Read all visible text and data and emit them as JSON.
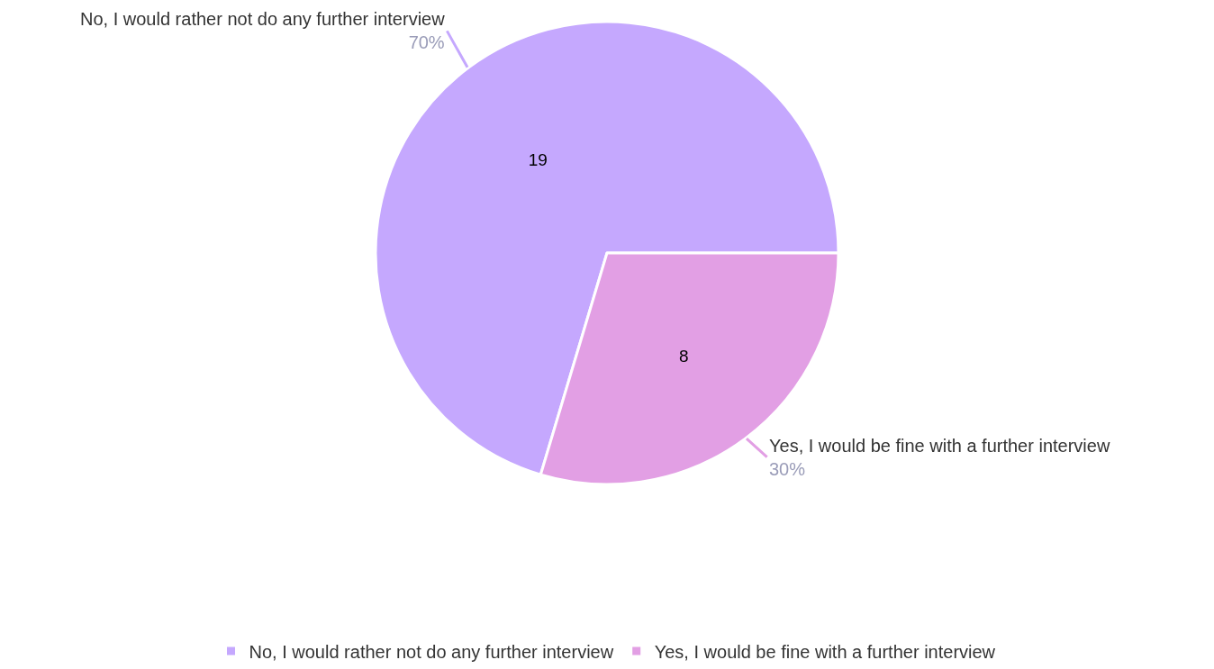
{
  "chart_data": {
    "type": "pie",
    "categories": [
      "No, I would rather not do any further interview",
      "Yes, I would be fine with a further interview"
    ],
    "values": [
      19,
      8
    ],
    "colors": [
      "#c5a8fe",
      "#e29fe4"
    ],
    "data_labels": true,
    "annotations": [
      "70%",
      "30%"
    ],
    "legend": "bottom"
  }
}
